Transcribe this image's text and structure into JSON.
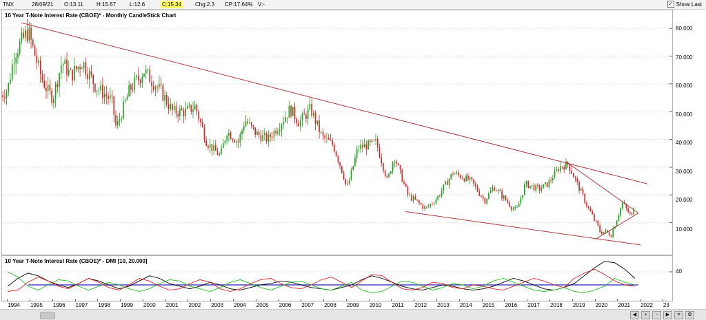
{
  "toolbar": {
    "symbol": "TNX",
    "date": "28/09/21",
    "open": "O:13.11",
    "high": "H:15.67",
    "low": "L:12.6",
    "close": "C:15.34",
    "change": "Chg:2.3",
    "change_pct": "CP:17.64%",
    "volume": "V:-",
    "show_last_label": "Show Last",
    "show_last_checked": true
  },
  "price_panel": {
    "title": "10 Year T-Note Interest Rate (CBOE)* - Monthly CandleStick Chart",
    "y_ticks": [
      "80.000",
      "70.000",
      "60.000",
      "50.000",
      "40.000",
      "30.000",
      "20.000",
      "10.000"
    ]
  },
  "dmi_panel": {
    "title": "10 Year T-Note Interest Rate (CBOE)* - DMI [10, 20.000]",
    "y_ticks": [
      "40"
    ]
  },
  "x_axis": {
    "labels": [
      "1994",
      "1995",
      "1996",
      "1997",
      "1998",
      "1999",
      "2000",
      "2001",
      "2002",
      "2003",
      "2004",
      "2005",
      "2006",
      "2007",
      "2008",
      "2009",
      "2010",
      "2011",
      "2012",
      "2013",
      "2014",
      "2015",
      "2016",
      "2017",
      "2018",
      "2019",
      "2020",
      "2021",
      "2022",
      "23"
    ]
  },
  "colors": {
    "up": "#17a217",
    "down": "#e01f1f",
    "trendline": "#a83a3a",
    "adx": "#000000",
    "plus_di": "#1fbf1f",
    "minus_di": "#e02020",
    "threshold": "#2020c0"
  },
  "chart_data": [
    {
      "type": "candlestick",
      "title": "10 Year T-Note Interest Rate (CBOE)* - Monthly CandleStick Chart",
      "interval": "monthly",
      "ylim": [
        0,
        85
      ],
      "x_range": [
        "1994",
        "2023"
      ],
      "price_path": [
        {
          "x": 1993.7,
          "y": 56
        },
        {
          "x": 1994.0,
          "y": 58
        },
        {
          "x": 1994.3,
          "y": 71
        },
        {
          "x": 1994.9,
          "y": 79
        },
        {
          "x": 1995.5,
          "y": 62
        },
        {
          "x": 1995.8,
          "y": 57
        },
        {
          "x": 1996.0,
          "y": 55
        },
        {
          "x": 1996.4,
          "y": 68
        },
        {
          "x": 1996.8,
          "y": 63
        },
        {
          "x": 1997.3,
          "y": 68
        },
        {
          "x": 1997.9,
          "y": 59
        },
        {
          "x": 1998.6,
          "y": 54
        },
        {
          "x": 1998.8,
          "y": 44
        },
        {
          "x": 1999.4,
          "y": 58
        },
        {
          "x": 1999.9,
          "y": 63
        },
        {
          "x": 2000.0,
          "y": 65
        },
        {
          "x": 2000.8,
          "y": 57
        },
        {
          "x": 2001.3,
          "y": 50
        },
        {
          "x": 2001.9,
          "y": 50
        },
        {
          "x": 2002.3,
          "y": 52
        },
        {
          "x": 2002.8,
          "y": 39
        },
        {
          "x": 2003.4,
          "y": 34
        },
        {
          "x": 2003.7,
          "y": 43
        },
        {
          "x": 2004.2,
          "y": 39
        },
        {
          "x": 2004.5,
          "y": 47
        },
        {
          "x": 2005.0,
          "y": 42
        },
        {
          "x": 2005.5,
          "y": 40
        },
        {
          "x": 2006.0,
          "y": 45
        },
        {
          "x": 2006.5,
          "y": 51
        },
        {
          "x": 2006.9,
          "y": 46
        },
        {
          "x": 2007.4,
          "y": 51
        },
        {
          "x": 2007.9,
          "y": 41
        },
        {
          "x": 2008.4,
          "y": 38
        },
        {
          "x": 2008.9,
          "y": 26
        },
        {
          "x": 2009.0,
          "y": 22
        },
        {
          "x": 2009.5,
          "y": 37
        },
        {
          "x": 2010.0,
          "y": 38
        },
        {
          "x": 2010.3,
          "y": 39
        },
        {
          "x": 2010.8,
          "y": 25
        },
        {
          "x": 2011.1,
          "y": 34
        },
        {
          "x": 2011.7,
          "y": 20
        },
        {
          "x": 2012.5,
          "y": 15
        },
        {
          "x": 2013.0,
          "y": 19
        },
        {
          "x": 2013.7,
          "y": 28
        },
        {
          "x": 2014.5,
          "y": 25
        },
        {
          "x": 2015.1,
          "y": 18
        },
        {
          "x": 2015.5,
          "y": 23
        },
        {
          "x": 2016.5,
          "y": 14
        },
        {
          "x": 2016.9,
          "y": 24
        },
        {
          "x": 2017.5,
          "y": 22
        },
        {
          "x": 2017.9,
          "y": 24
        },
        {
          "x": 2018.4,
          "y": 30
        },
        {
          "x": 2018.8,
          "y": 31
        },
        {
          "x": 2019.2,
          "y": 24
        },
        {
          "x": 2019.7,
          "y": 15
        },
        {
          "x": 2020.2,
          "y": 7
        },
        {
          "x": 2020.7,
          "y": 6
        },
        {
          "x": 2021.2,
          "y": 17
        },
        {
          "x": 2021.6,
          "y": 12
        },
        {
          "x": 2021.75,
          "y": 15.34
        }
      ],
      "last_bar": {
        "date": "28/09/21",
        "open": 13.11,
        "high": 15.67,
        "low": 12.6,
        "close": 15.34
      },
      "trendlines": [
        {
          "from": {
            "x": 1994.6,
            "y": 82
          },
          "to": {
            "x": 2022.3,
            "y": 24
          }
        },
        {
          "from": {
            "x": 2011.6,
            "y": 14
          },
          "to": {
            "x": 2022.0,
            "y": 2
          }
        },
        {
          "from": {
            "x": 2018.7,
            "y": 32
          },
          "to": {
            "x": 2021.9,
            "y": 13.5
          }
        },
        {
          "from": {
            "x": 2020.0,
            "y": 4
          },
          "to": {
            "x": 2021.9,
            "y": 13.5
          }
        }
      ]
    },
    {
      "type": "line",
      "title": "10 Year T-Note Interest Rate (CBOE)* - DMI [10, 20.000]",
      "params": [
        10,
        20.0
      ],
      "ylim": [
        0,
        60
      ],
      "series": [
        {
          "key": "adx",
          "values": [
            18,
            30,
            38,
            34,
            26,
            20,
            16,
            22,
            30,
            26,
            20,
            14,
            18,
            26,
            34,
            30,
            22,
            18,
            14,
            18,
            24,
            20,
            14,
            12,
            16,
            20,
            22,
            26,
            24,
            20,
            16,
            14,
            12,
            16,
            20,
            28,
            34,
            30,
            24,
            18,
            14,
            12,
            16,
            20,
            18,
            14,
            12,
            14,
            18,
            24,
            30,
            26,
            20,
            14,
            12,
            16,
            22,
            34,
            46,
            56,
            54,
            44,
            30
          ]
        },
        {
          "key": "plus_di",
          "values": [
            40,
            32,
            18,
            12,
            20,
            28,
            26,
            18,
            12,
            18,
            24,
            20,
            14,
            10,
            14,
            22,
            28,
            26,
            18,
            14,
            10,
            16,
            24,
            28,
            22,
            16,
            12,
            18,
            24,
            26,
            20,
            14,
            12,
            18,
            24,
            12,
            8,
            10,
            18,
            26,
            24,
            18,
            12,
            16,
            22,
            20,
            14,
            18,
            26,
            30,
            24,
            18,
            12,
            10,
            12,
            16,
            10,
            8,
            12,
            18,
            30,
            24,
            20
          ]
        },
        {
          "key": "minus_di",
          "values": [
            10,
            12,
            24,
            32,
            26,
            18,
            14,
            22,
            30,
            24,
            16,
            12,
            20,
            30,
            26,
            18,
            12,
            14,
            22,
            28,
            24,
            14,
            10,
            14,
            22,
            28,
            30,
            22,
            16,
            14,
            20,
            28,
            32,
            24,
            16,
            26,
            36,
            34,
            24,
            14,
            12,
            16,
            24,
            22,
            16,
            14,
            20,
            18,
            14,
            12,
            18,
            24,
            30,
            26,
            20,
            16,
            30,
            38,
            44,
            36,
            26,
            20,
            18
          ]
        }
      ],
      "threshold": 20,
      "y_ticks": [
        40
      ]
    }
  ]
}
